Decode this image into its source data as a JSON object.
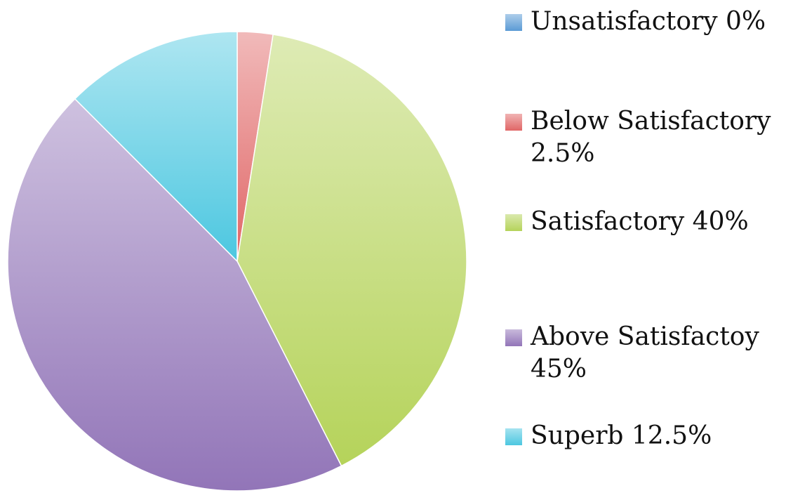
{
  "chart_data": {
    "type": "pie",
    "categories": [
      "Unsatisfactory",
      "Below Satisfactory",
      "Satisfactory",
      "Above Satisfactoy",
      "Superb"
    ],
    "values": [
      0,
      2.5,
      40,
      45,
      12.5
    ],
    "value_labels": [
      "0%",
      "2.5%",
      "40%",
      "45%",
      "12.5%"
    ],
    "colors": [
      "#5b9bd5",
      "#e06666",
      "#b5d35a",
      "#9275b8",
      "#4cc7e0"
    ],
    "legend": "right"
  }
}
